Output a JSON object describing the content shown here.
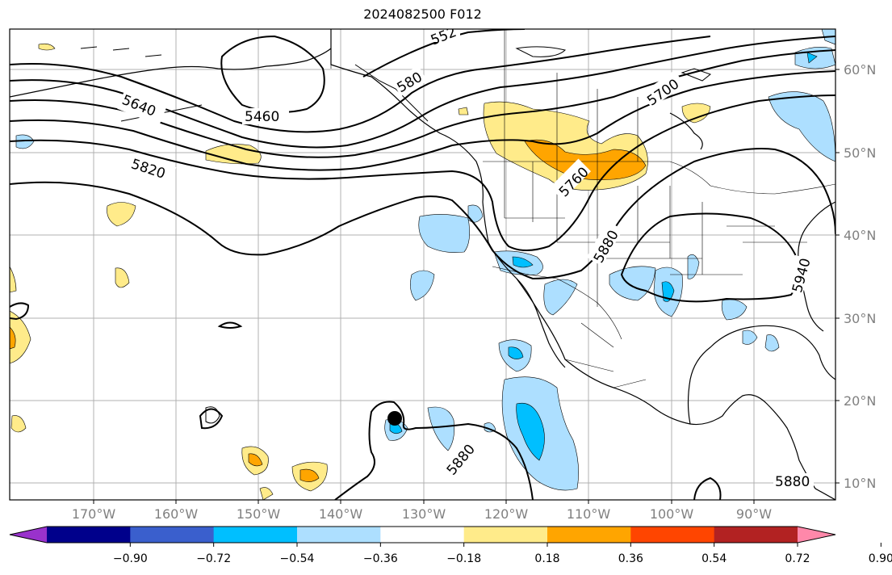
{
  "title": "2024082500 F012",
  "latitude_labels": [
    "60°N",
    "50°N",
    "40°N",
    "30°N",
    "20°N",
    "10°N"
  ],
  "longitude_labels": [
    "170°W",
    "160°W",
    "150°W",
    "140°W",
    "130°W",
    "120°W",
    "110°W",
    "100°W",
    "90°W"
  ],
  "contour_labels": [
    "552",
    "5640",
    "5460",
    "580",
    "5700",
    "5820",
    "5760",
    "5880",
    "5940",
    "5880",
    "5880"
  ],
  "colorbar": {
    "ticks": [
      "−0.90",
      "−0.72",
      "−0.54",
      "−0.36",
      "−0.18",
      "0.18",
      "0.36",
      "0.54",
      "0.72",
      "0.90"
    ],
    "colors": [
      "#9932CC",
      "#00008B",
      "#3A5FCD",
      "#00BFFF",
      "#ADDFFF",
      "#FFFFFF",
      "#FFEB8A",
      "#FFA500",
      "#FF4500",
      "#B22222",
      "#FF88AA"
    ]
  },
  "colors": {
    "land_outline": "#000000",
    "contour_line": "#000000",
    "grid": "#b0b0b0",
    "axis_label": "#808080"
  },
  "markers": [
    {
      "name": "storm-center",
      "color": "#000000"
    }
  ]
}
